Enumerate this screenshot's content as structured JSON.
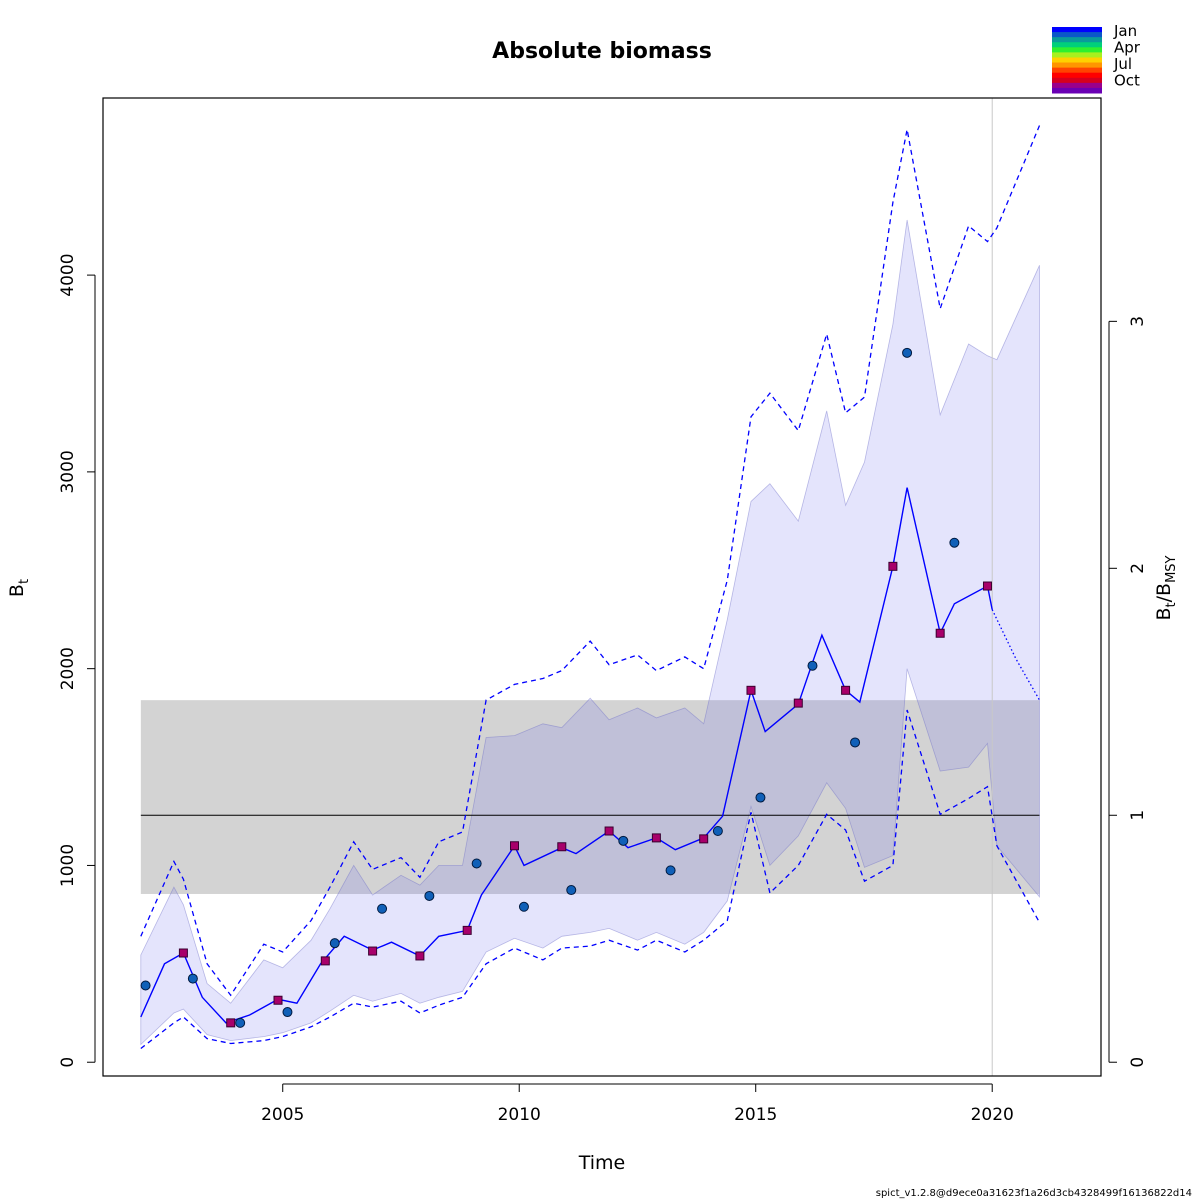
{
  "chart_data": {
    "type": "line",
    "title": "Absolute biomass",
    "xlabel": "Time",
    "ylabel": "B",
    "ylabel_sub": "t",
    "ylabel_right_main": "B",
    "ylabel_right_sub1": "t",
    "ylabel_right_sep": "/B",
    "ylabel_right_sub2": "MSY",
    "xlim": [
      2001.2,
      2022.3
    ],
    "ylim": [
      -70,
      4900
    ],
    "x_ticks": [
      "2005",
      "2010",
      "2015",
      "2020"
    ],
    "y_ticks": [
      "0",
      "1000",
      "2000",
      "3000",
      "4000"
    ],
    "y2_ticks": [
      "0",
      "1",
      "2",
      "3"
    ],
    "bmsy": 1255,
    "bmsy_ci": [
      855,
      1840
    ],
    "bmsy_ci_x": [
      2002.0,
      2021.0
    ],
    "vline_x": 2020.0,
    "season_legend": [
      "Jan",
      "Apr",
      "Jul",
      "Oct"
    ],
    "season_colors": [
      "#0000ff",
      "#0b57c8",
      "#0a9a9a",
      "#00d07a",
      "#2ef02e",
      "#a8f01e",
      "#ffd000",
      "#ff9500",
      "#ff4400",
      "#ff0000",
      "#d6001e",
      "#9a008c",
      "#6a00b4"
    ],
    "biomass_estimate": {
      "x": [
        2002.0,
        2002.5,
        2002.9,
        2003.3,
        2003.8,
        2004.3,
        2004.9,
        2005.3,
        2005.8,
        2006.3,
        2006.9,
        2007.3,
        2007.9,
        2008.3,
        2008.9,
        2009.2,
        2009.9,
        2010.1,
        2010.9,
        2011.2,
        2011.9,
        2012.3,
        2012.9,
        2013.3,
        2013.9,
        2014.3,
        2014.9,
        2015.2,
        2015.9,
        2016.4,
        2016.9,
        2017.2,
        2017.9,
        2018.2,
        2018.9,
        2019.2,
        2019.9,
        2020.0
      ],
      "y": [
        230,
        500,
        555,
        330,
        200,
        240,
        320,
        300,
        500,
        640,
        570,
        610,
        540,
        640,
        670,
        850,
        1100,
        1000,
        1090,
        1060,
        1175,
        1090,
        1140,
        1080,
        1140,
        1250,
        1890,
        1680,
        1820,
        2170,
        1890,
        1830,
        2520,
        2920,
        2180,
        2330,
        2420,
        2300
      ]
    },
    "biomass_forecast": {
      "x": [
        2020.0,
        2020.5,
        2021.0
      ],
      "y": [
        2300,
        2050,
        1840
      ]
    },
    "ci_inner_upper": [
      545,
      890,
      800,
      400,
      300,
      520,
      480,
      620,
      780,
      1000,
      850,
      950,
      900,
      1000,
      1000,
      1650,
      1660,
      1720,
      1700,
      1850,
      1740,
      1800,
      1750,
      1800,
      1720,
      2250,
      2850,
      2940,
      2750,
      3310,
      2830,
      3050,
      3750,
      4280,
      3290,
      3650,
      3590,
      3570,
      4050
    ],
    "ci_inner_lower": [
      90,
      250,
      270,
      140,
      110,
      130,
      150,
      200,
      260,
      340,
      310,
      350,
      300,
      330,
      360,
      560,
      630,
      580,
      640,
      660,
      680,
      620,
      660,
      600,
      660,
      820,
      1300,
      1000,
      1150,
      1420,
      1290,
      990,
      1050,
      2000,
      1480,
      1500,
      1620,
      1100,
      840
    ],
    "ci_outer_upper": [
      640,
      1020,
      930,
      500,
      340,
      600,
      560,
      720,
      890,
      1120,
      980,
      1040,
      940,
      1120,
      1170,
      1840,
      1920,
      1950,
      1990,
      2140,
      2020,
      2070,
      1990,
      2060,
      2000,
      2450,
      3280,
      3400,
      3210,
      3700,
      3300,
      3380,
      4370,
      4740,
      3830,
      4250,
      4170,
      4240,
      4760
    ],
    "ci_outer_lower": [
      70,
      200,
      230,
      120,
      95,
      110,
      130,
      180,
      230,
      300,
      280,
      310,
      250,
      290,
      330,
      500,
      580,
      520,
      580,
      590,
      620,
      570,
      620,
      560,
      620,
      720,
      1270,
      860,
      1000,
      1260,
      1180,
      920,
      1000,
      1790,
      1260,
      1340,
      1400,
      1100,
      710
    ],
    "ci_x": [
      2002.0,
      2002.7,
      2002.9,
      2003.4,
      2003.9,
      2004.6,
      2005.0,
      2005.6,
      2006.0,
      2006.5,
      2006.9,
      2007.5,
      2007.9,
      2008.3,
      2008.8,
      2009.3,
      2009.9,
      2010.5,
      2010.9,
      2011.5,
      2011.9,
      2012.5,
      2012.9,
      2013.5,
      2013.9,
      2014.4,
      2014.9,
      2015.3,
      2015.9,
      2016.5,
      2016.9,
      2017.3,
      2017.9,
      2018.2,
      2018.9,
      2019.5,
      2019.9,
      2020.1,
      2021.0
    ],
    "index1_points": {
      "x": [
        2002.1,
        2003.1,
        2004.1,
        2005.1,
        2006.1,
        2007.1,
        2008.1,
        2009.1,
        2010.1,
        2011.1,
        2012.2,
        2013.2,
        2014.2,
        2015.1,
        2016.2,
        2017.1,
        2018.2,
        2019.2
      ],
      "y": [
        390,
        425,
        200,
        255,
        605,
        780,
        845,
        1010,
        790,
        875,
        1125,
        975,
        1175,
        1345,
        2015,
        1625,
        3605,
        2640
      ]
    },
    "index2_points": {
      "x": [
        2002.9,
        2003.9,
        2004.9,
        2005.9,
        2006.9,
        2007.9,
        2008.9,
        2009.9,
        2010.9,
        2011.9,
        2012.9,
        2013.9,
        2014.9,
        2015.9,
        2016.9,
        2017.9,
        2018.9,
        2019.9
      ],
      "y": [
        555,
        200,
        315,
        515,
        565,
        540,
        670,
        1100,
        1095,
        1175,
        1140,
        1135,
        1890,
        1825,
        1890,
        2520,
        2180,
        2420
      ]
    }
  },
  "footer": "spict_v1.2.8@d9ece0a31623f1a26d3cb4328499f16136822d14"
}
